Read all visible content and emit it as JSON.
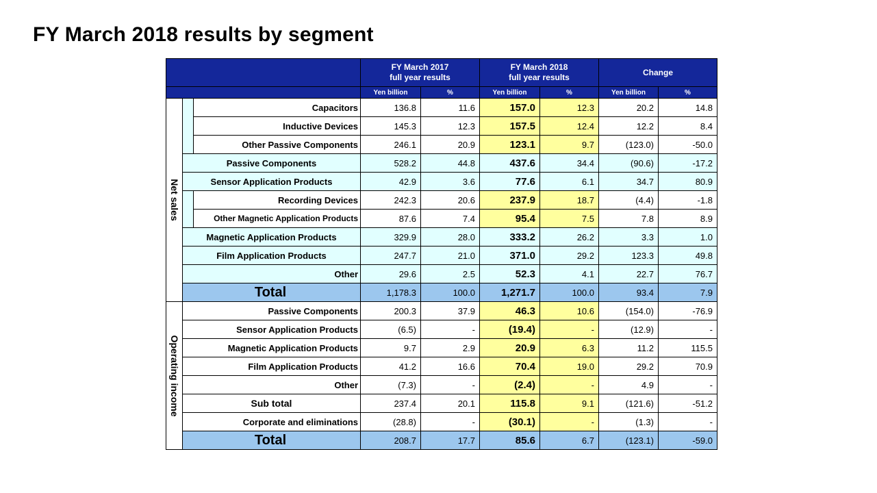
{
  "title": "FY March 2018 results by segment",
  "header": {
    "fy2017_line1": "FY March 2017",
    "fy2017_line2": "full year results",
    "fy2018_line1": "FY March 2018",
    "fy2018_line2": "full year results",
    "change": "Change",
    "yen": "Yen billion",
    "pct": "%"
  },
  "net_sales": {
    "label": "Net sales",
    "rows": [
      {
        "name": "Capacitors",
        "v17": "136.8",
        "p17": "11.6",
        "v18": "157.0",
        "p18": "12.3",
        "chg": "20.2",
        "chgp": "14.8"
      },
      {
        "name": "Inductive Devices",
        "v17": "145.3",
        "p17": "12.3",
        "v18": "157.5",
        "p18": "12.4",
        "chg": "12.2",
        "chgp": "8.4"
      },
      {
        "name": "Other Passive Components",
        "v17": "246.1",
        "p17": "20.9",
        "v18": "123.1",
        "p18": "9.7",
        "chg": "(123.0)",
        "chgp": "-50.0"
      },
      {
        "name": "Passive Components",
        "v17": "528.2",
        "p17": "44.8",
        "v18": "437.6",
        "p18": "34.4",
        "chg": "(90.6)",
        "chgp": "-17.2"
      },
      {
        "name": "Sensor Application Products",
        "v17": "42.9",
        "p17": "3.6",
        "v18": "77.6",
        "p18": "6.1",
        "chg": "34.7",
        "chgp": "80.9"
      },
      {
        "name": "Recording Devices",
        "v17": "242.3",
        "p17": "20.6",
        "v18": "237.9",
        "p18": "18.7",
        "chg": "(4.4)",
        "chgp": "-1.8"
      },
      {
        "name": "Other Magnetic Application Products",
        "v17": "87.6",
        "p17": "7.4",
        "v18": "95.4",
        "p18": "7.5",
        "chg": "7.8",
        "chgp": "8.9"
      },
      {
        "name": "Magnetic Application Products",
        "v17": "329.9",
        "p17": "28.0",
        "v18": "333.2",
        "p18": "26.2",
        "chg": "3.3",
        "chgp": "1.0"
      },
      {
        "name": "Film Application Products",
        "v17": "247.7",
        "p17": "21.0",
        "v18": "371.0",
        "p18": "29.2",
        "chg": "123.3",
        "chgp": "49.8"
      },
      {
        "name": "Other",
        "v17": "29.6",
        "p17": "2.5",
        "v18": "52.3",
        "p18": "4.1",
        "chg": "22.7",
        "chgp": "76.7"
      }
    ],
    "total": {
      "name": "Total",
      "v17": "1,178.3",
      "p17": "100.0",
      "v18": "1,271.7",
      "p18": "100.0",
      "chg": "93.4",
      "chgp": "7.9"
    }
  },
  "operating_income": {
    "label": "Operating income",
    "rows": [
      {
        "name": "Passive Components",
        "v17": "200.3",
        "p17": "37.9",
        "v18": "46.3",
        "p18": "10.6",
        "chg": "(154.0)",
        "chgp": "-76.9"
      },
      {
        "name": "Sensor Application Products",
        "v17": "(6.5)",
        "p17": "-",
        "v18": "(19.4)",
        "p18": "-",
        "chg": "(12.9)",
        "chgp": "-"
      },
      {
        "name": "Magnetic Application Products",
        "v17": "9.7",
        "p17": "2.9",
        "v18": "20.9",
        "p18": "6.3",
        "chg": "11.2",
        "chgp": "115.5"
      },
      {
        "name": "Film Application Products",
        "v17": "41.2",
        "p17": "16.6",
        "v18": "70.4",
        "p18": "19.0",
        "chg": "29.2",
        "chgp": "70.9"
      },
      {
        "name": "Other",
        "v17": "(7.3)",
        "p17": "-",
        "v18": "(2.4)",
        "p18": "-",
        "chg": "4.9",
        "chgp": "-"
      },
      {
        "name": "Sub total",
        "v17": "237.4",
        "p17": "20.1",
        "v18": "115.8",
        "p18": "9.1",
        "chg": "(121.6)",
        "chgp": "-51.2"
      },
      {
        "name": "Corporate and eliminations",
        "v17": "(28.8)",
        "p17": "-",
        "v18": "(30.1)",
        "p18": "-",
        "chg": "(1.3)",
        "chgp": "-"
      }
    ],
    "total": {
      "name": "Total",
      "v17": "208.7",
      "p17": "17.7",
      "v18": "85.6",
      "p18": "6.7",
      "chg": "(123.1)",
      "chgp": "-59.0"
    }
  }
}
